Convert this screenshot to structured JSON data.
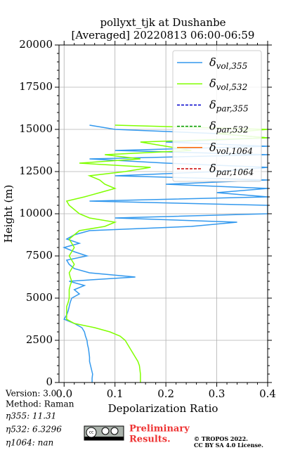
{
  "chart_data": {
    "type": "line",
    "title": "pollyxt_tjk at Dushanbe",
    "subtitle": "[Averaged] 20220813 06:00-06:59",
    "x_label": "Depolarization Ratio",
    "y_label": "Height (m)",
    "height": [
      0,
      250,
      500,
      750,
      1000,
      1250,
      1500,
      1750,
      2000,
      2250,
      2500,
      2750,
      3000,
      3250,
      3500,
      3750,
      4000,
      4250,
      4500,
      4750,
      5000,
      5250,
      5500,
      5750,
      6000,
      6250,
      6500,
      6750,
      7000,
      7250,
      7500,
      7750,
      8000,
      8250,
      8500,
      8750,
      9000,
      9250,
      9500,
      9750,
      10000,
      10250,
      10500,
      10750,
      11000,
      11250,
      11500,
      11750,
      12000,
      12250,
      12500,
      12750,
      13000,
      13250,
      13500,
      13750,
      14000,
      14250,
      14500,
      14750,
      15000,
      15250
    ],
    "series": [
      {
        "name": "δvol,355",
        "color": "#3399ee",
        "style": "solid",
        "values": [
          0.055,
          0.055,
          0.056,
          0.054,
          0.052,
          0.05,
          0.05,
          0.049,
          0.048,
          0.046,
          0.045,
          0.042,
          0.04,
          0.035,
          0.02,
          0.0,
          0.005,
          0.008,
          0.01,
          0.012,
          0.015,
          0.03,
          0.02,
          0.04,
          0.01,
          0.14,
          0.05,
          0.02,
          0.01,
          0.005,
          0.045,
          0.02,
          0.0,
          0.03,
          0.005,
          0.02,
          0.05,
          0.25,
          0.34,
          0.1,
          0.4,
          0.4,
          0.4,
          0.05,
          0.4,
          0.3,
          0.4,
          0.2,
          0.4,
          0.1,
          0.3,
          0.4,
          0.2,
          0.05,
          0.4,
          0.1,
          0.4,
          0.2,
          0.4,
          0.3,
          0.1,
          0.05
        ]
      },
      {
        "name": "δvol,532",
        "color": "#80ff00",
        "style": "solid",
        "values": [
          0.15,
          0.15,
          0.15,
          0.149,
          0.148,
          0.145,
          0.14,
          0.135,
          0.13,
          0.125,
          0.12,
          0.11,
          0.09,
          0.06,
          0.02,
          0.005,
          0.005,
          0.005,
          0.005,
          0.008,
          0.01,
          0.01,
          0.01,
          0.012,
          0.015,
          0.012,
          0.01,
          0.015,
          0.02,
          0.015,
          0.01,
          0.015,
          0.02,
          0.015,
          0.01,
          0.02,
          0.03,
          0.08,
          0.1,
          0.05,
          0.03,
          0.02,
          0.01,
          0.005,
          0.04,
          0.07,
          0.1,
          0.08,
          0.07,
          0.05,
          0.12,
          0.17,
          0.03,
          0.15,
          0.08,
          0.25,
          0.2,
          0.15,
          0.4,
          0.3,
          0.4,
          0.1
        ]
      },
      {
        "name": "δpar,355",
        "color": "#0000cc",
        "style": "dashed"
      },
      {
        "name": "δpar,532",
        "color": "#009900",
        "style": "dashed"
      },
      {
        "name": "δvol,1064",
        "color": "#ff6600",
        "style": "solid"
      },
      {
        "name": "δpar,1064",
        "color": "#cc0000",
        "style": "dashed"
      }
    ],
    "xlim": [
      -0.01,
      0.4
    ],
    "xticks": [
      {
        "value": 0,
        "label": "0.0"
      },
      0.1,
      0.2,
      0.3,
      0.4
    ],
    "ylim": [
      0,
      20000
    ],
    "yticks": [
      0,
      2500,
      5000,
      7500,
      10000,
      12500,
      15000,
      17500,
      20000
    ],
    "grid": true,
    "legend": "upper right",
    "info": [
      "Version: 3.0",
      "Method: Raman",
      "η355:  11.31",
      "η532: 6.3296",
      "η1064:    nan"
    ],
    "notice": [
      "Preliminary",
      "Results."
    ],
    "copyright": [
      "© TROPOS 2022.",
      "CC BY SA 4.0 License."
    ]
  }
}
